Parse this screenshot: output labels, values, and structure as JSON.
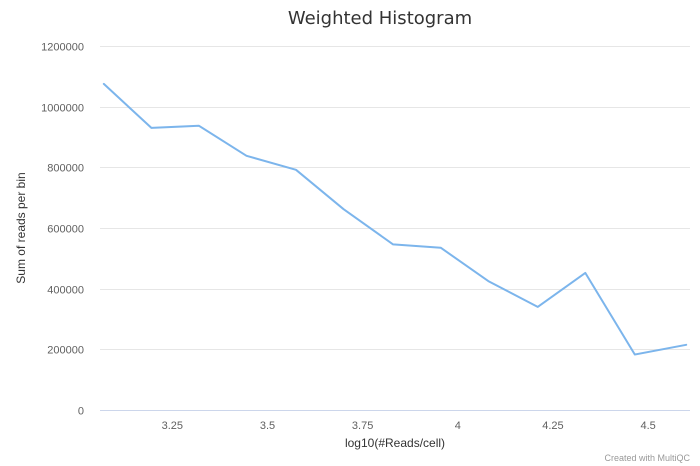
{
  "chart_data": {
    "type": "line",
    "title": "Weighted Histogram",
    "xlabel": "log10(#Reads/cell)",
    "ylabel": "Sum of reads per bin",
    "xlim": [
      3.06,
      4.61
    ],
    "ylim": [
      0,
      1200000
    ],
    "xticks": [
      3.25,
      3.5,
      3.75,
      4,
      4.25,
      4.5
    ],
    "xtick_labels": [
      "3.25",
      "3.5",
      "3.75",
      "4",
      "4.25",
      "4.5"
    ],
    "yticks": [
      0,
      200000,
      400000,
      600000,
      800000,
      1000000,
      1200000
    ],
    "ytick_labels": [
      "0",
      "200000",
      "400000",
      "600000",
      "800000",
      "1000000",
      "1200000"
    ],
    "grid": true,
    "credit": "Created with MultiQC",
    "series": [
      {
        "color": "#7cb5ec",
        "x": [
          3.07,
          3.195,
          3.32,
          3.445,
          3.575,
          3.7,
          3.83,
          3.955,
          4.08,
          4.21,
          4.335,
          4.465,
          4.6
        ],
        "y": [
          1075000,
          930000,
          937000,
          838000,
          792000,
          662000,
          546000,
          535000,
          425000,
          340000,
          452000,
          183000,
          215000
        ]
      }
    ]
  }
}
